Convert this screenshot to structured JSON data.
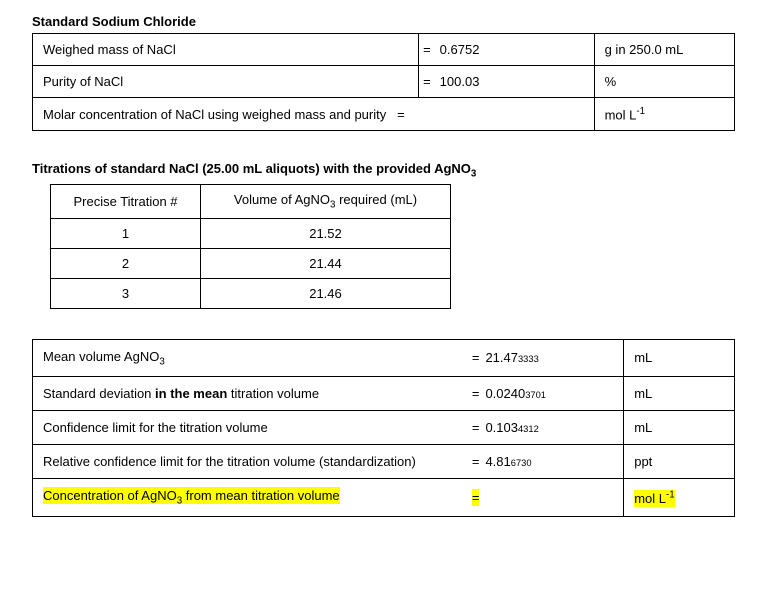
{
  "section1": {
    "title": "Standard Sodium Chloride",
    "rows": [
      {
        "label": "Weighed mass of NaCl",
        "value": "0.6752",
        "unit": "g in 250.0 mL",
        "wide": false
      },
      {
        "label": "Purity of NaCl",
        "value": "100.03",
        "unit": "%",
        "wide": false
      },
      {
        "label": "Molar concentration of NaCl using weighed mass and purity",
        "value": "",
        "unit": "mol L",
        "wide": true,
        "unitSup": "-1"
      }
    ]
  },
  "section2": {
    "titlePrefix": "Titrations of standard NaCl (25.00 mL aliquots) with the provided AgNO",
    "titleSub": "3",
    "header1": "Precise Titration #",
    "header2pre": "Volume of AgNO",
    "header2sub": "3",
    "header2post": " required (mL)",
    "rows": [
      {
        "n": "1",
        "v": "21.52"
      },
      {
        "n": "2",
        "v": "21.44"
      },
      {
        "n": "3",
        "v": "21.46"
      }
    ]
  },
  "section3": {
    "rows": [
      {
        "labelPre": "Mean volume AgNO",
        "labelSub": "3",
        "labelPost": "",
        "valMain": "21.47",
        "valSmall": "3333",
        "unit": "mL",
        "hl": false
      },
      {
        "labelPlainPre": "Standard deviation ",
        "labelBold": "in the mean",
        "labelPlainPost": " titration volume",
        "valMain": "0.0240",
        "valSmall": "3701",
        "unit": "mL",
        "hl": false
      },
      {
        "labelPlain": "Confidence limit for the titration volume",
        "valMain": "0.103",
        "valSmall": "4312",
        "unit": "mL",
        "hl": false
      },
      {
        "labelPlain": "Relative confidence limit for the titration volume (standardization)",
        "valMain": "4.81",
        "valSmall": "6730",
        "unit": "ppt",
        "hl": false
      },
      {
        "labelPre": "Concentration of AgNO",
        "labelSub": "3",
        "labelPost": " from mean titration volume",
        "valMain": "",
        "valSmall": "",
        "unit": "mol L",
        "unitSup": "-1",
        "hl": true
      }
    ]
  }
}
